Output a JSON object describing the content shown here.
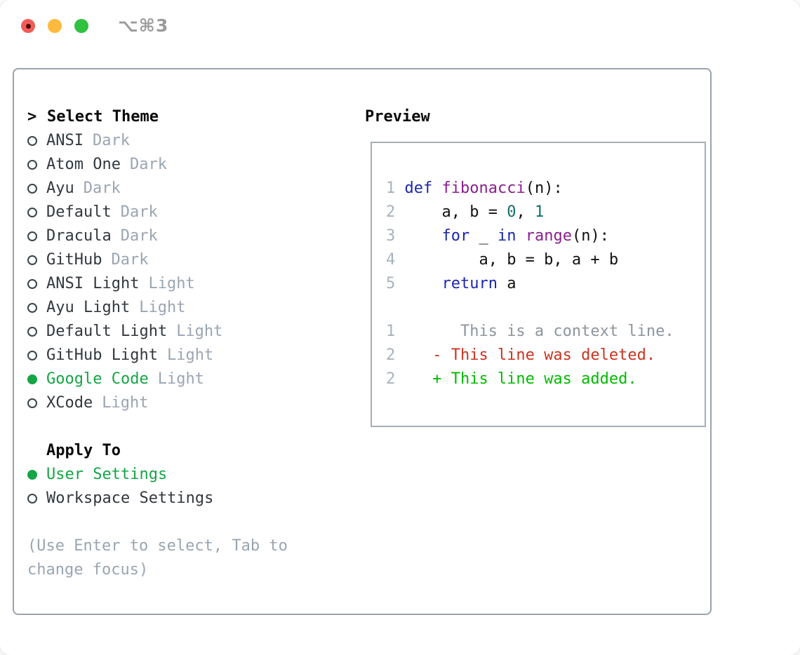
{
  "titlebar": {
    "shortcut": "⌥⌘3",
    "window_controls": [
      "close",
      "minimize",
      "zoom"
    ],
    "close_has_unsaved_dot": true
  },
  "colors": {
    "selected_green": "#15a545",
    "added_green": "#00bb00",
    "deleted_red": "#c93420",
    "keyword_blue": "#1c26ae",
    "function_purple": "#8a1f8f",
    "literal_teal": "#0e6e6e",
    "line_number_gray": "#a8b2bc",
    "context_gray": "#8d959d",
    "muted_gray": "#9aa5b2",
    "item_text": "#32383e",
    "border_gray": "#9aa3ad",
    "traffic_red": "#f25c57",
    "traffic_yellow": "#fcba3e",
    "traffic_green": "#2fc13f"
  },
  "theme_list": {
    "caret": ">",
    "title": "Select Theme",
    "items": [
      {
        "name": "ANSI",
        "variant": "Dark",
        "selected": false
      },
      {
        "name": "Atom One",
        "variant": "Dark",
        "selected": false
      },
      {
        "name": "Ayu",
        "variant": "Dark",
        "selected": false
      },
      {
        "name": "Default",
        "variant": "Dark",
        "selected": false
      },
      {
        "name": "Dracula",
        "variant": "Dark",
        "selected": false
      },
      {
        "name": "GitHub",
        "variant": "Dark",
        "selected": false
      },
      {
        "name": "ANSI Light",
        "variant": "Light",
        "selected": false
      },
      {
        "name": "Ayu Light",
        "variant": "Light",
        "selected": false
      },
      {
        "name": "Default Light",
        "variant": "Light",
        "selected": false
      },
      {
        "name": "GitHub Light",
        "variant": "Light",
        "selected": false
      },
      {
        "name": "Google Code",
        "variant": "Light",
        "selected": true
      },
      {
        "name": "XCode",
        "variant": "Light",
        "selected": false
      }
    ]
  },
  "apply_to": {
    "title": "Apply To",
    "items": [
      {
        "label": "User Settings",
        "selected": true
      },
      {
        "label": "Workspace Settings",
        "selected": false
      }
    ]
  },
  "help": {
    "lines": [
      "(Use Enter to select, Tab to",
      "change focus)"
    ]
  },
  "preview": {
    "title": "Preview",
    "lines": [
      [
        {
          "t": "1",
          "s": "ln"
        },
        {
          "t": " ",
          "s": "pl"
        },
        {
          "t": "def",
          "s": "kw"
        },
        {
          "t": " ",
          "s": "pl"
        },
        {
          "t": "fibonacci",
          "s": "fn"
        },
        {
          "t": "(n):",
          "s": "pl"
        }
      ],
      [
        {
          "t": "2",
          "s": "ln"
        },
        {
          "t": "     a, b = ",
          "s": "pl"
        },
        {
          "t": "0",
          "s": "lit"
        },
        {
          "t": ", ",
          "s": "pl"
        },
        {
          "t": "1",
          "s": "lit"
        }
      ],
      [
        {
          "t": "3",
          "s": "ln"
        },
        {
          "t": "     ",
          "s": "pl"
        },
        {
          "t": "for",
          "s": "kw"
        },
        {
          "t": " _ ",
          "s": "pl"
        },
        {
          "t": "in",
          "s": "kw"
        },
        {
          "t": " ",
          "s": "pl"
        },
        {
          "t": "range",
          "s": "fn"
        },
        {
          "t": "(n):",
          "s": "pl"
        }
      ],
      [
        {
          "t": "4",
          "s": "ln"
        },
        {
          "t": "         a, b = b, a + b",
          "s": "pl"
        }
      ],
      [
        {
          "t": "5",
          "s": "ln"
        },
        {
          "t": "     ",
          "s": "pl"
        },
        {
          "t": "return",
          "s": "kw"
        },
        {
          "t": " a",
          "s": "pl"
        }
      ],
      [],
      [
        {
          "t": "1",
          "s": "ln"
        },
        {
          "t": "       This is a context line.",
          "s": "ctx"
        }
      ],
      [
        {
          "t": "2",
          "s": "ln"
        },
        {
          "t": "    - This line was deleted.",
          "s": "del"
        }
      ],
      [
        {
          "t": "2",
          "s": "ln"
        },
        {
          "t": "    + This line was added.",
          "s": "add"
        }
      ]
    ]
  }
}
